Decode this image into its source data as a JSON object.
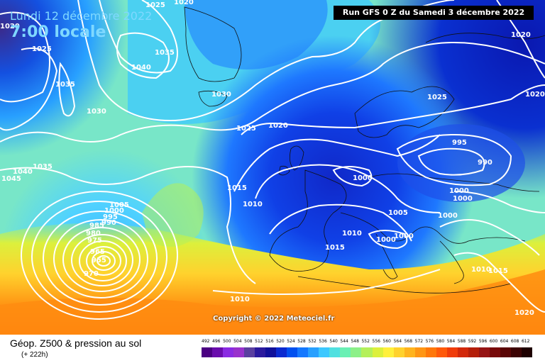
{
  "header": {
    "date_line": "Lundi 12 décembre 2022",
    "time_line": "7:00 locale",
    "run_info": "Run GFS 0 Z du Samedi 3 décembre 2022"
  },
  "footer": {
    "title": "Géop. Z500 & pression au sol",
    "forecast_offset": "(+ 222h)",
    "copyright": "Copyright © 2022 Meteociel.fr"
  },
  "legend": {
    "levels": [
      "492",
      "496",
      "500",
      "504",
      "508",
      "512",
      "516",
      "520",
      "524",
      "528",
      "532",
      "536",
      "540",
      "544",
      "548",
      "552",
      "556",
      "560",
      "564",
      "568",
      "572",
      "576",
      "580",
      "584",
      "588",
      "592",
      "596",
      "600",
      "604",
      "608",
      "612"
    ],
    "colors": [
      "#4b0082",
      "#6a0dad",
      "#8a2be2",
      "#9932cc",
      "#5a3fa0",
      "#2b1a9e",
      "#10109a",
      "#0a2ad0",
      "#0050f0",
      "#1478ff",
      "#28a0ff",
      "#3cc8ff",
      "#50e0e0",
      "#6af0b4",
      "#8cf088",
      "#b4f05a",
      "#dcf03c",
      "#fff03c",
      "#ffd22d",
      "#ffb41e",
      "#ff9614",
      "#ff780a",
      "#ff5a0a",
      "#f03c0a",
      "#d2280a",
      "#b41e0a",
      "#961414",
      "#780a0a",
      "#5a0505",
      "#3c0303",
      "#1e0000"
    ]
  },
  "isobar_labels": [
    "1025",
    "1020",
    "1020",
    "1025",
    "1035",
    "1040",
    "1035",
    "1030",
    "1030",
    "1025",
    "1020",
    "1025",
    "1020",
    "1020",
    "995",
    "990",
    "1000",
    "1000",
    "1000",
    "1000",
    "1040",
    "1045",
    "1035",
    "1015",
    "1010",
    "1005",
    "1000",
    "995",
    "990",
    "985",
    "980",
    "975",
    "965",
    "955",
    "970",
    "1010",
    "1015",
    "1005",
    "1000",
    "1000",
    "1010",
    "1015",
    "1010",
    "1020"
  ]
}
